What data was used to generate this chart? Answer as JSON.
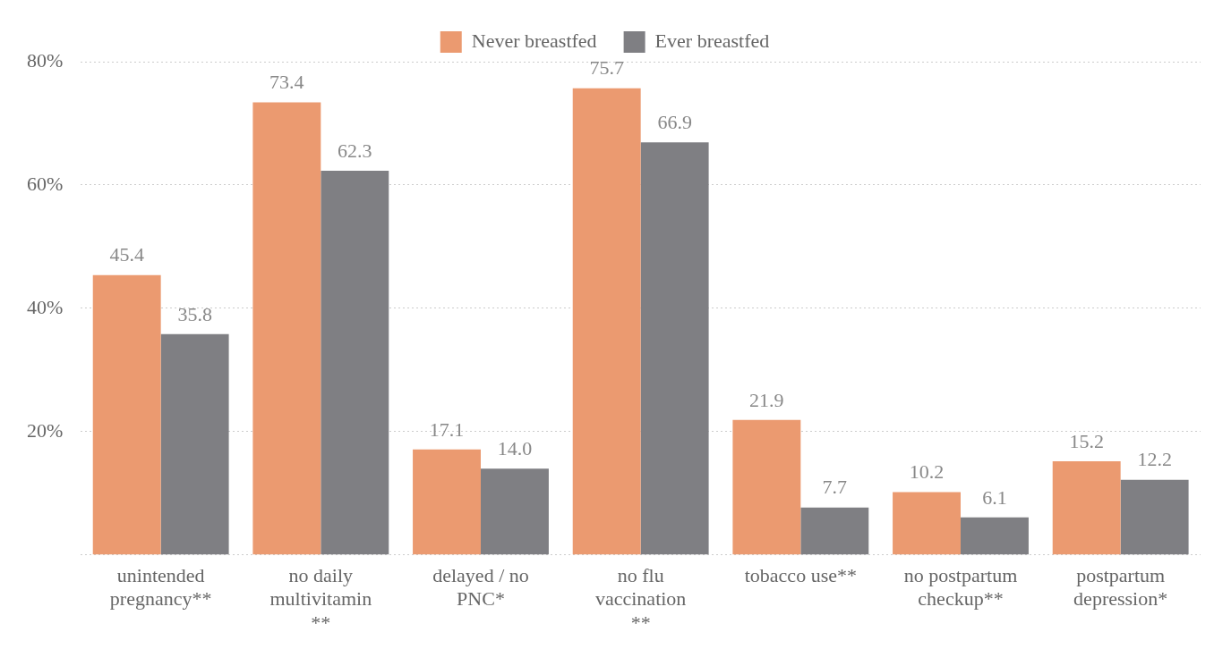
{
  "chart_data": {
    "type": "bar",
    "categories": [
      "unintended pregnancy**",
      "no daily multivitamin **",
      "delayed / no PNC*",
      "no flu vaccination **",
      "tobacco use**",
      "no postpartum checkup**",
      "postpartum depression*"
    ],
    "series": [
      {
        "name": "Never breastfed",
        "color": "#eb9a70",
        "values": [
          45.4,
          73.4,
          17.1,
          75.7,
          21.9,
          10.2,
          15.2
        ],
        "value_labels": [
          "45.4",
          "73.4",
          "17.1",
          "75.7",
          "21.9",
          "10.2",
          "15.2"
        ]
      },
      {
        "name": "Ever breastfed",
        "color": "#7f7f83",
        "values": [
          35.8,
          62.3,
          14.0,
          66.9,
          7.7,
          6.1,
          12.2
        ],
        "value_labels": [
          "35.8",
          "62.3",
          "14.0",
          "66.9",
          "7.7",
          "6.1",
          "12.2"
        ]
      }
    ],
    "ylim": [
      0,
      80
    ],
    "yticks": [
      {
        "value": 0,
        "label": null
      },
      {
        "value": 20,
        "label": "20%"
      },
      {
        "value": 40,
        "label": "40%"
      },
      {
        "value": 60,
        "label": "60%"
      },
      {
        "value": 80,
        "label": "80%"
      }
    ],
    "grid": "y",
    "legend": "top"
  }
}
